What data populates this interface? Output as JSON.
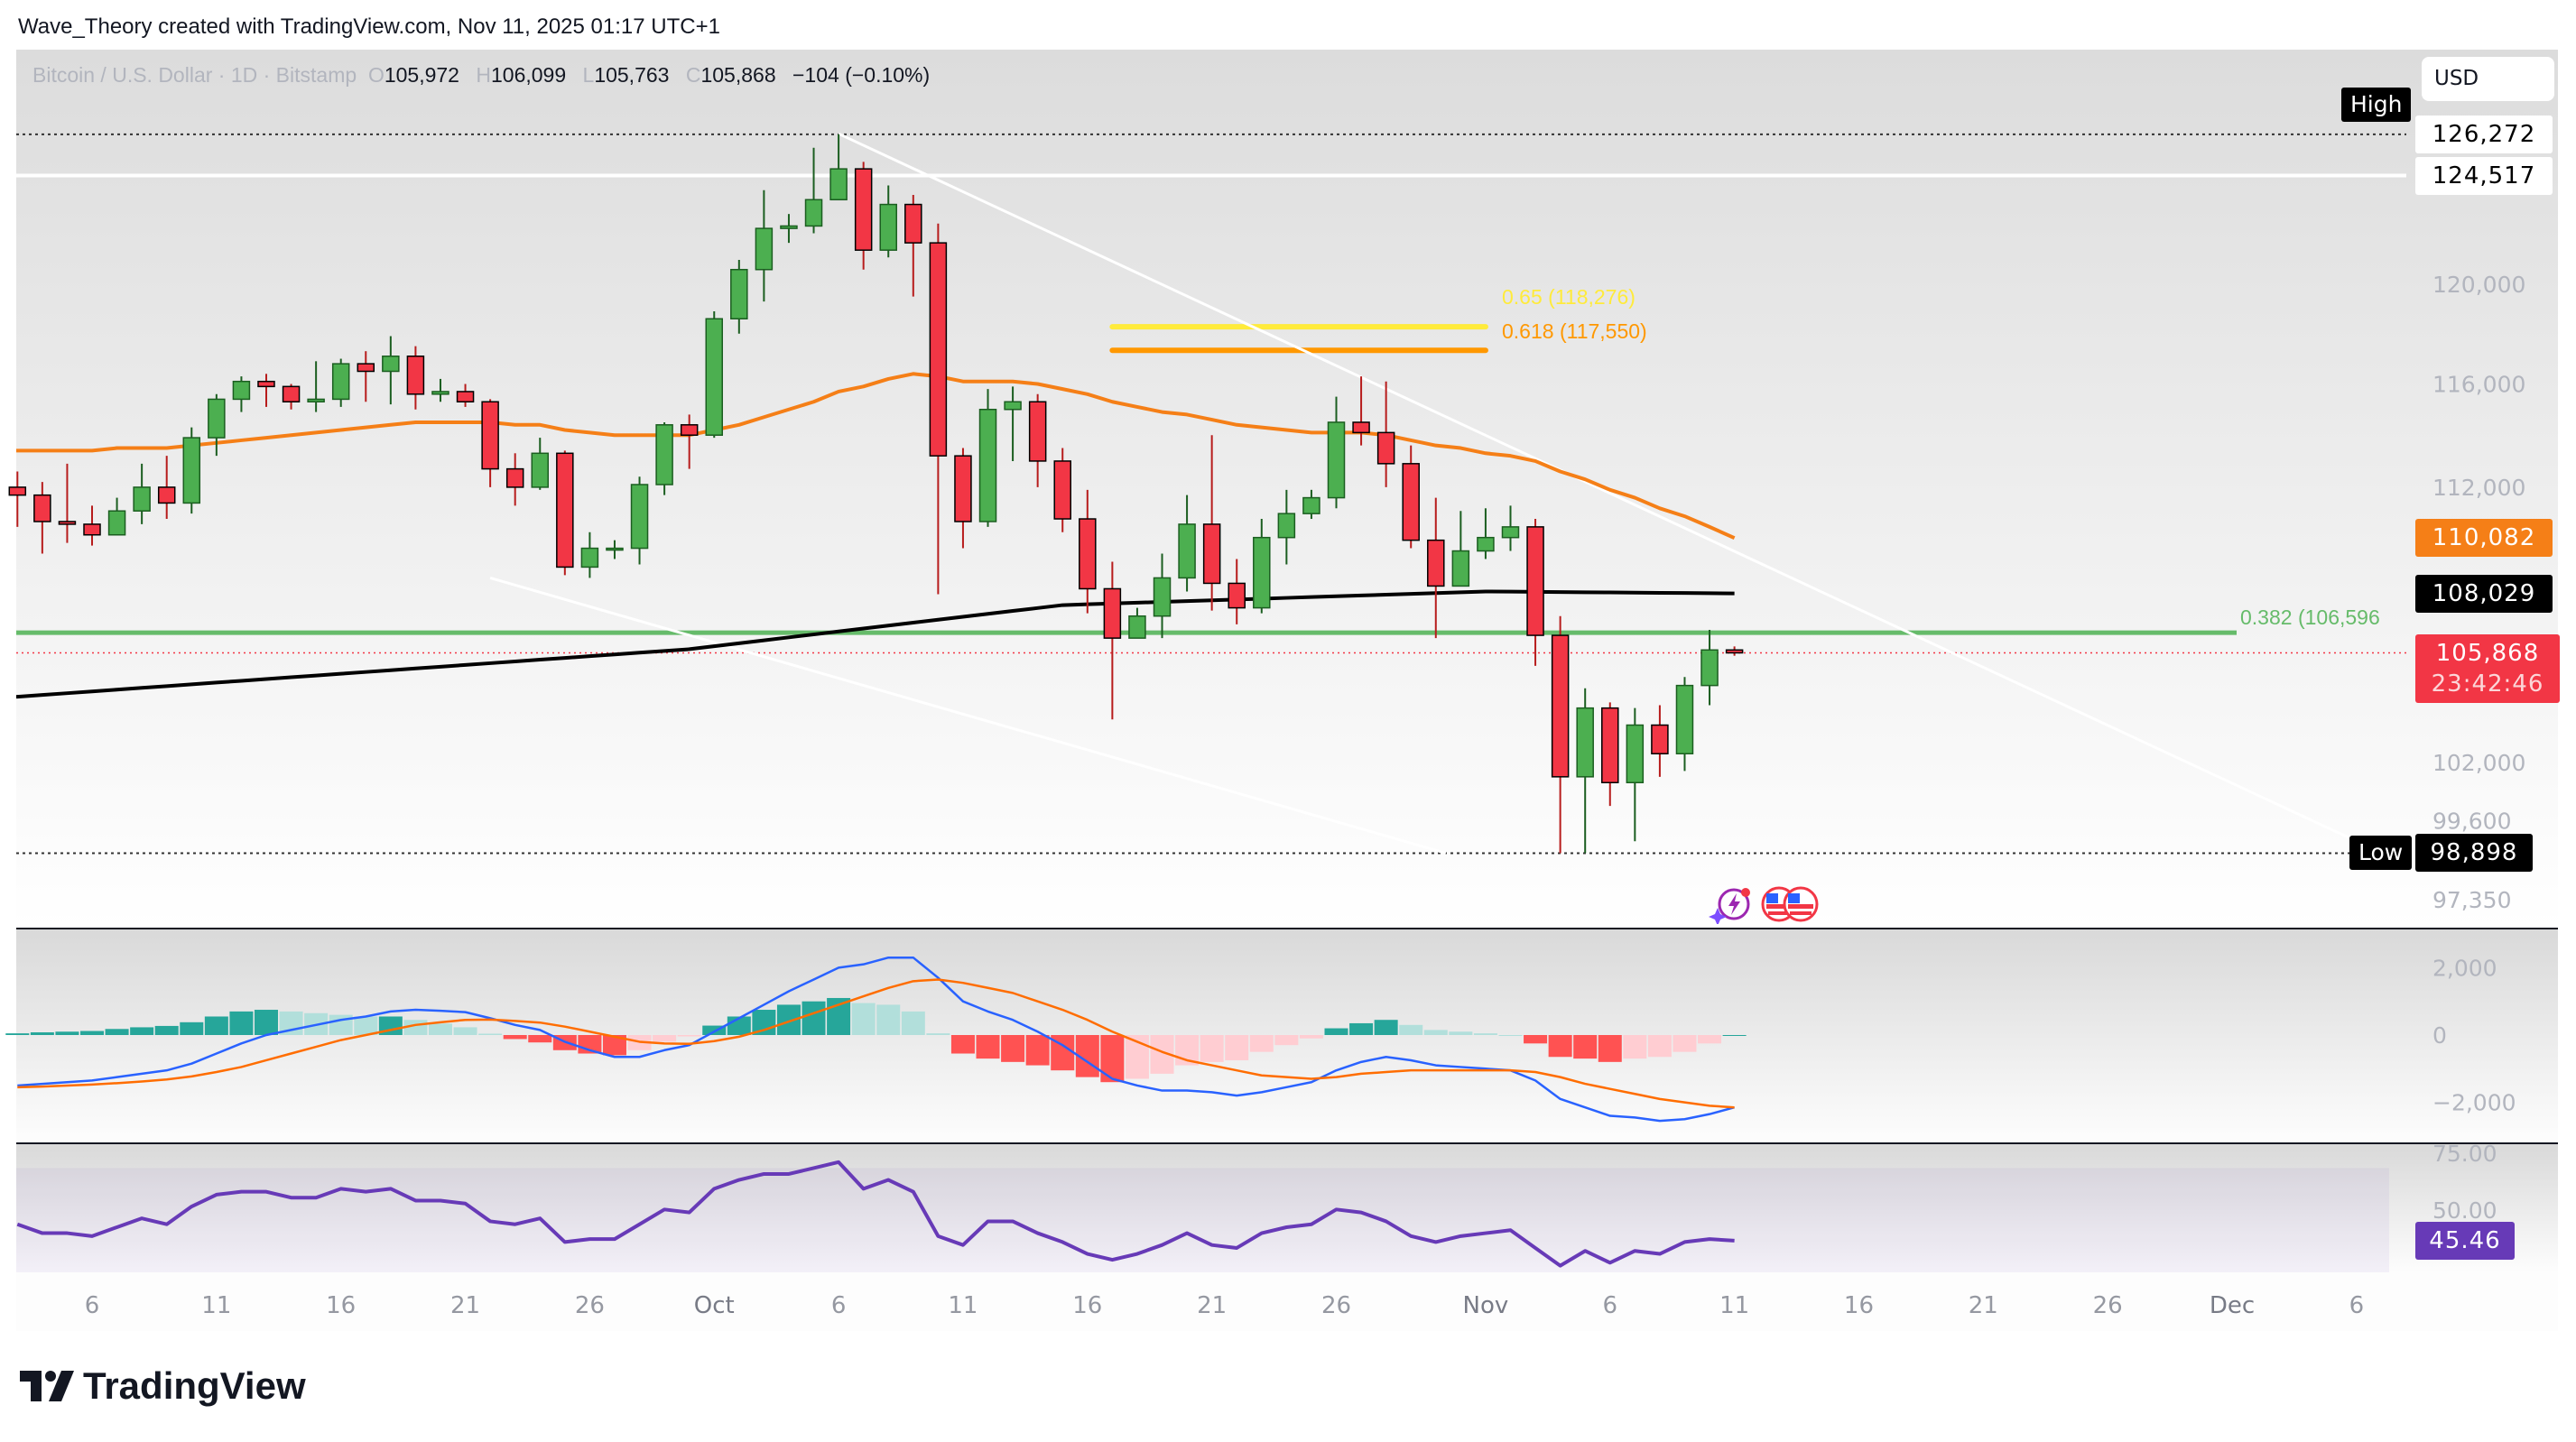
{
  "credit": "Wave_Theory created with TradingView.com, Nov 11, 2025 01:17 UTC+1",
  "legend": {
    "symbol": "Bitcoin / U.S. Dollar · 1D · Bitstamp",
    "o_key": "O",
    "open": "105,972",
    "h_key": "H",
    "high": "106,099",
    "l_key": "L",
    "low": "105,763",
    "c_key": "C",
    "close": "105,868",
    "change": "−104 (−0.10%)"
  },
  "currency_button": "USD",
  "price_axis": {
    "ticks": [
      [
        "120,000",
        120.0
      ],
      [
        "116,000",
        116.0
      ],
      [
        "112,000",
        112.0
      ],
      [
        "102,000",
        102.0
      ],
      [
        "99,600",
        99.6
      ],
      [
        "97,350",
        97.35
      ]
    ]
  },
  "badges": {
    "high_tag": "High",
    "high_value": "126,272",
    "high_price": 126.272,
    "resistance": "124,517",
    "resistance_price": 124.517,
    "ema": "110,082",
    "ema_price": 110.082,
    "sma": "108,029",
    "sma_price": 108.029,
    "last": "105,868",
    "last_price": 105.868,
    "countdown": "23:42:46",
    "low_tag": "Low",
    "low_value": "98,898",
    "low_price": 98.898
  },
  "fib": [
    {
      "label": "0.65 (118,276)",
      "price": 118.276,
      "color": "#ffeb3b",
      "from_day": 44,
      "to_day": 59
    },
    {
      "label": "0.618 (117,550)",
      "price": 117.55,
      "color": "#ff9800",
      "from_day": 44,
      "to_day": 59
    },
    {
      "label": "0.382 (106,596",
      "price": 106.596,
      "color": "#66bb6a"
    }
  ],
  "trendlines": [
    {
      "from": [
        33,
        126.3
      ],
      "to": [
        94,
        99.3
      ]
    },
    {
      "from": [
        19,
        108.6
      ],
      "to": [
        57.4,
        98.9
      ]
    }
  ],
  "colors": {
    "up": "#4caf50",
    "down": "#f23645",
    "ema": "#f57f17",
    "sma": "#000000",
    "macd": "#2962ff",
    "signal": "#ff6d00",
    "rsi": "#673ab7",
    "hist_up": "#26a69a",
    "hist_up_light": "#b2dfdb",
    "hist_dn": "#ff5252",
    "hist_dn_light": "#ffcdd2"
  },
  "chart_data": {
    "type": "candlestick",
    "unit": "thousand USD",
    "start_date": "Sep 3",
    "close": [
      111.7,
      110.7,
      110.6,
      110.2,
      111.1,
      112.0,
      111.4,
      113.9,
      115.4,
      116.1,
      115.9,
      115.3,
      115.4,
      116.8,
      116.5,
      117.1,
      115.6,
      115.7,
      115.3,
      112.7,
      112.0,
      113.3,
      109.0,
      109.7,
      109.7,
      112.1,
      114.4,
      114.0,
      118.6,
      120.6,
      122.3,
      122.4,
      123.5,
      124.8,
      121.4,
      123.3,
      121.7,
      113.2,
      110.7,
      115.0,
      115.3,
      113.0,
      110.8,
      108.2,
      106.4,
      107.2,
      108.6,
      110.6,
      108.4,
      107.5,
      110.1,
      111.0,
      111.6,
      114.5,
      114.1,
      112.9,
      110.0,
      108.3,
      109.6,
      110.1,
      110.5,
      106.5,
      101.5,
      103.9,
      101.3,
      103.3,
      102.3,
      104.7,
      105.972,
      105.868
    ],
    "high": [
      112.6,
      112.2,
      112.9,
      111.3,
      111.6,
      112.9,
      113.2,
      114.3,
      115.6,
      116.3,
      116.4,
      116.0,
      116.9,
      117.0,
      117.3,
      117.9,
      117.5,
      116.2,
      116.0,
      115.4,
      113.3,
      113.9,
      113.4,
      110.3,
      110.0,
      112.4,
      114.5,
      114.8,
      118.9,
      121.0,
      123.9,
      122.9,
      125.7,
      126.272,
      125.1,
      124.1,
      123.7,
      122.5,
      113.5,
      115.8,
      115.9,
      115.6,
      113.5,
      111.9,
      109.2,
      107.5,
      109.5,
      111.7,
      114.0,
      109.3,
      110.8,
      111.9,
      111.9,
      115.5,
      116.3,
      116.1,
      113.6,
      111.6,
      111.1,
      111.2,
      111.3,
      110.8,
      107.2,
      104.6,
      104.1,
      103.9,
      104.0,
      105.0,
      106.7,
      106.099
    ],
    "low": [
      110.5,
      109.5,
      109.9,
      109.8,
      110.2,
      110.6,
      110.8,
      111.0,
      113.2,
      114.9,
      115.1,
      115.0,
      114.9,
      115.1,
      115.3,
      115.2,
      115.0,
      115.3,
      115.1,
      112.0,
      111.3,
      111.9,
      108.7,
      108.6,
      109.3,
      109.1,
      111.7,
      112.7,
      113.9,
      118.0,
      119.3,
      121.7,
      122.1,
      123.6,
      120.6,
      121.1,
      119.5,
      108.0,
      109.7,
      110.5,
      113.0,
      112.0,
      110.3,
      107.3,
      103.5,
      106.4,
      106.4,
      108.1,
      107.4,
      106.9,
      107.3,
      109.1,
      110.8,
      111.2,
      113.6,
      112.0,
      109.7,
      106.4,
      108.4,
      109.3,
      109.6,
      105.4,
      98.898,
      98.9,
      100.5,
      99.3,
      101.5,
      101.7,
      104.0,
      105.763
    ],
    "first_open": 112.0,
    "ema50": [
      113.4,
      113.4,
      113.4,
      113.4,
      113.5,
      113.5,
      113.5,
      113.6,
      113.7,
      113.8,
      113.9,
      114.0,
      114.1,
      114.2,
      114.3,
      114.4,
      114.5,
      114.5,
      114.5,
      114.5,
      114.4,
      114.4,
      114.2,
      114.1,
      114.0,
      114.0,
      114.0,
      114.0,
      114.2,
      114.4,
      114.7,
      115.0,
      115.3,
      115.7,
      115.9,
      116.2,
      116.4,
      116.3,
      116.1,
      116.1,
      116.1,
      116.0,
      115.8,
      115.6,
      115.3,
      115.1,
      114.9,
      114.8,
      114.6,
      114.4,
      114.3,
      114.2,
      114.1,
      114.1,
      114.1,
      114.0,
      113.8,
      113.6,
      113.5,
      113.3,
      113.2,
      113.0,
      112.6,
      112.3,
      111.9,
      111.6,
      111.2,
      110.9,
      110.5,
      110.082
    ],
    "sma200_anchors": [
      [
        0,
        104.3
      ],
      [
        27,
        106.0
      ],
      [
        42,
        107.6
      ],
      [
        59,
        108.1
      ],
      [
        69,
        108.029
      ]
    ],
    "macd": [
      -1500,
      -1450,
      -1400,
      -1350,
      -1250,
      -1150,
      -1050,
      -850,
      -550,
      -250,
      0,
      150,
      300,
      450,
      550,
      700,
      750,
      720,
      680,
      500,
      300,
      150,
      -200,
      -450,
      -650,
      -650,
      -450,
      -300,
      100,
      500,
      900,
      1300,
      1650,
      2000,
      2100,
      2300,
      2300,
      1700,
      1000,
      700,
      450,
      100,
      -300,
      -800,
      -1300,
      -1500,
      -1650,
      -1650,
      -1700,
      -1800,
      -1700,
      -1550,
      -1400,
      -1050,
      -800,
      -650,
      -750,
      -900,
      -950,
      -1000,
      -1050,
      -1350,
      -1900,
      -2150,
      -2400,
      -2450,
      -2550,
      -2500,
      -2350,
      -2150
    ],
    "signal": [
      -1550,
      -1530,
      -1500,
      -1470,
      -1430,
      -1380,
      -1320,
      -1230,
      -1100,
      -950,
      -750,
      -550,
      -350,
      -150,
      0,
      150,
      300,
      380,
      450,
      460,
      420,
      370,
      250,
      100,
      -50,
      -200,
      -250,
      -260,
      -180,
      -50,
      150,
      400,
      650,
      900,
      1150,
      1400,
      1600,
      1650,
      1550,
      1400,
      1250,
      1000,
      750,
      450,
      100,
      -200,
      -500,
      -750,
      -900,
      -1050,
      -1200,
      -1250,
      -1300,
      -1250,
      -1150,
      -1100,
      -1050,
      -1050,
      -1050,
      -1050,
      -1050,
      -1100,
      -1250,
      -1450,
      -1600,
      -1750,
      -1900,
      -2000,
      -2100,
      -2150
    ],
    "macd_ticks": [
      [
        "2,000",
        2000
      ],
      [
        "0",
        0
      ],
      [
        "−2,000",
        -2000
      ]
    ],
    "rsi": [
      51,
      48,
      48,
      47,
      50,
      53,
      51,
      57,
      61,
      62,
      62,
      60,
      60,
      63,
      62,
      63,
      59,
      59,
      58,
      52,
      51,
      53,
      45,
      46,
      46,
      51,
      56,
      55,
      63,
      66,
      68,
      68,
      70,
      72,
      63,
      66,
      62,
      47,
      44,
      52,
      52,
      48,
      45,
      41,
      39,
      41,
      44,
      48,
      44,
      43,
      48,
      50,
      51,
      56,
      55,
      52,
      47,
      45,
      47,
      48,
      49,
      43,
      37,
      42,
      38,
      42,
      41,
      45,
      46,
      45.46
    ],
    "rsi_ticks": [
      [
        "75.00",
        75
      ],
      [
        "50.00",
        50
      ]
    ],
    "rsi_value": "45.46",
    "x_ticks": [
      [
        "6",
        3
      ],
      [
        "11",
        8
      ],
      [
        "16",
        13
      ],
      [
        "21",
        18
      ],
      [
        "26",
        23
      ],
      [
        "Oct",
        28
      ],
      [
        "6",
        33
      ],
      [
        "11",
        38
      ],
      [
        "16",
        43
      ],
      [
        "21",
        48
      ],
      [
        "26",
        53
      ],
      [
        "Nov",
        59
      ],
      [
        "6",
        64
      ],
      [
        "11",
        69
      ],
      [
        "16",
        74
      ],
      [
        "21",
        79
      ],
      [
        "26",
        84
      ],
      [
        "Dec",
        89
      ],
      [
        "6",
        94
      ]
    ]
  },
  "logo_text": "TradingView"
}
